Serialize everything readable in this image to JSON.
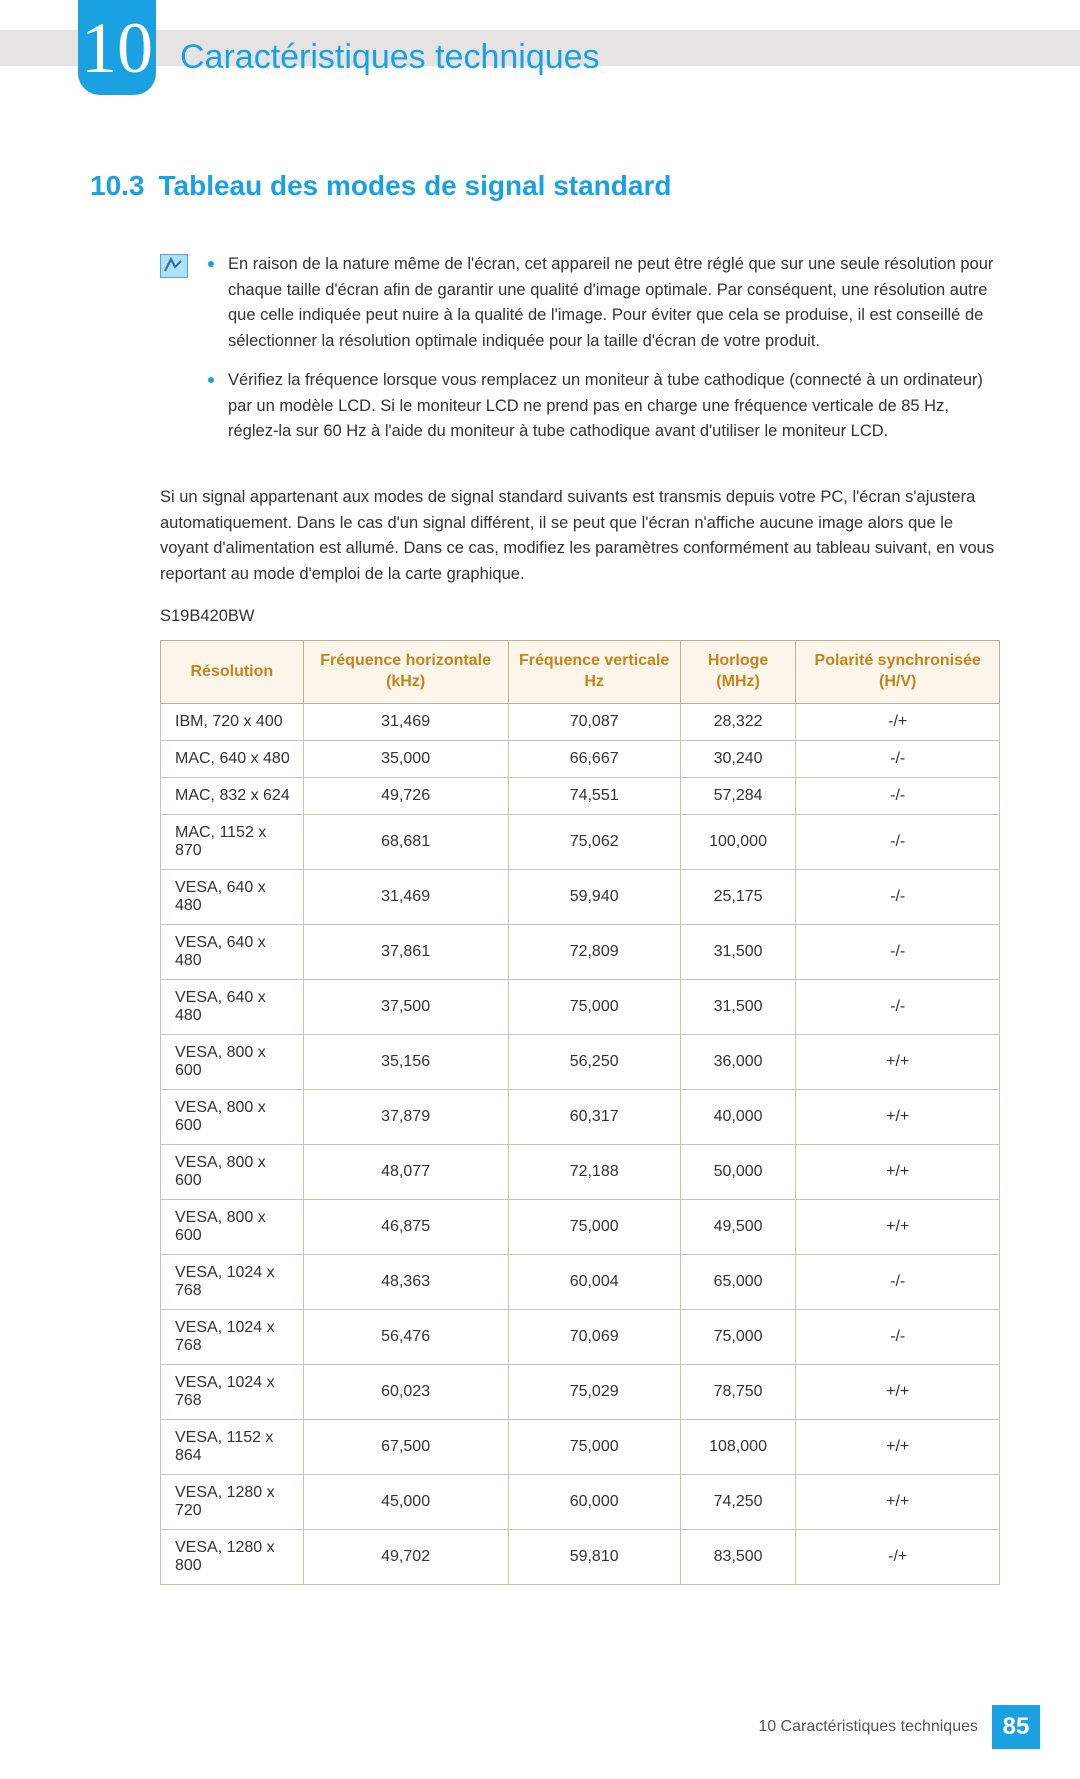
{
  "chapter": {
    "number": "10",
    "title": "Caractéristiques techniques"
  },
  "section": {
    "number": "10.3",
    "title": "Tableau des modes de signal standard"
  },
  "notes": [
    "En raison de la nature même de l'écran, cet appareil ne peut être réglé que sur une seule résolution pour chaque taille d'écran afin de garantir une qualité d'image optimale. Par conséquent, une résolution autre que celle indiquée peut nuire à la qualité de l'image. Pour éviter que cela se produise, il est conseillé de sélectionner la résolution optimale indiquée pour la taille d'écran de votre produit.",
    "Vérifiez la fréquence lorsque vous remplacez un moniteur à tube cathodique (connecté à un ordinateur) par un modèle LCD. Si le moniteur LCD ne prend pas en charge une fréquence verticale de 85 Hz, réglez-la sur 60 Hz à l'aide du moniteur à tube cathodique avant d'utiliser le moniteur LCD."
  ],
  "paragraph": "Si un signal appartenant aux modes de signal standard suivants est transmis depuis votre PC, l'écran s'ajustera automatiquement. Dans le cas d'un signal différent, il se peut que l'écran n'affiche aucune image alors que le voyant d'alimentation est allumé. Dans ce cas, modifiez les paramètres conformément au tableau suivant, en vous reportant au mode d'emploi de la carte graphique.",
  "model": "S19B420BW",
  "table": {
    "headers": [
      "Résolution",
      "Fréquence horizontale (kHz)",
      "Fréquence verticale Hz",
      "Horloge (MHz)",
      "Polarité synchronisée (H/V)"
    ],
    "header_bg": "#fcf6ea",
    "header_color": "#c3841d",
    "border_color": "#c9c3b2",
    "rows": [
      [
        "IBM, 720 x 400",
        "31,469",
        "70,087",
        "28,322",
        "-/+"
      ],
      [
        "MAC, 640 x 480",
        "35,000",
        "66,667",
        "30,240",
        "-/-"
      ],
      [
        "MAC, 832 x 624",
        "49,726",
        "74,551",
        "57,284",
        "-/-"
      ],
      [
        "MAC, 1152 x 870",
        "68,681",
        "75,062",
        "100,000",
        "-/-"
      ],
      [
        "VESA, 640 x 480",
        "31,469",
        "59,940",
        "25,175",
        "-/-"
      ],
      [
        "VESA, 640 x 480",
        "37,861",
        "72,809",
        "31,500",
        "-/-"
      ],
      [
        "VESA, 640 x 480",
        "37,500",
        "75,000",
        "31,500",
        "-/-"
      ],
      [
        "VESA, 800 x 600",
        "35,156",
        "56,250",
        "36,000",
        "+/+"
      ],
      [
        "VESA, 800 x 600",
        "37,879",
        "60,317",
        "40,000",
        "+/+"
      ],
      [
        "VESA, 800 x 600",
        "48,077",
        "72,188",
        "50,000",
        "+/+"
      ],
      [
        "VESA, 800 x 600",
        "46,875",
        "75,000",
        "49,500",
        "+/+"
      ],
      [
        "VESA, 1024 x 768",
        "48,363",
        "60,004",
        "65,000",
        "-/-"
      ],
      [
        "VESA, 1024 x 768",
        "56,476",
        "70,069",
        "75,000",
        "-/-"
      ],
      [
        "VESA, 1024 x 768",
        "60,023",
        "75,029",
        "78,750",
        "+/+"
      ],
      [
        "VESA, 1152 x 864",
        "67,500",
        "75,000",
        "108,000",
        "+/+"
      ],
      [
        "VESA, 1280 x 720",
        "45,000",
        "60,000",
        "74,250",
        "+/+"
      ],
      [
        "VESA, 1280 x 800",
        "49,702",
        "59,810",
        "83,500",
        "-/+"
      ]
    ]
  },
  "footer": {
    "text": "10 Caractéristiques techniques",
    "page": "85"
  },
  "colors": {
    "accent": "#1aa1e2",
    "text": "#333333"
  }
}
